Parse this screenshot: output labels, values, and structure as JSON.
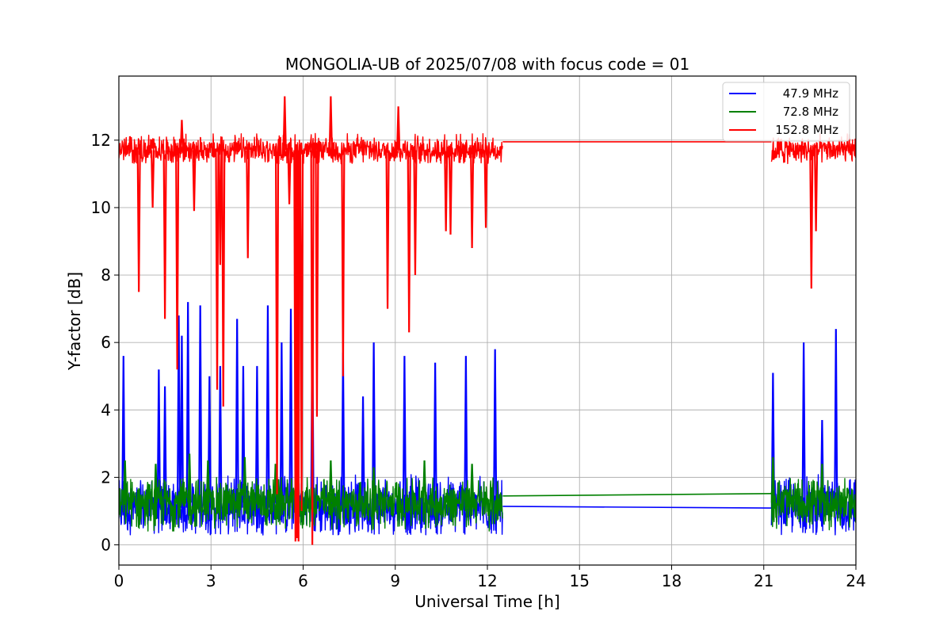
{
  "chart_data": {
    "type": "line",
    "title": "MONGOLIA-UB of 2025/07/08 with focus code = 01",
    "xlabel": "Universal Time [h]",
    "ylabel": "Y-factor [dB]",
    "xlim": [
      0,
      24
    ],
    "ylim": [
      -0.6,
      13.9
    ],
    "xticks": [
      0,
      3,
      6,
      9,
      12,
      15,
      18,
      21,
      24
    ],
    "xtick_labels": [
      "0",
      "3",
      "6",
      "9",
      "12",
      "15",
      "18",
      "21",
      "24"
    ],
    "yticks": [
      0,
      2,
      4,
      6,
      8,
      10,
      12
    ],
    "ytick_labels": [
      "0",
      "2",
      "4",
      "6",
      "8",
      "10",
      "12"
    ],
    "grid": true,
    "legend_position": "top-right",
    "gap": [
      12.5,
      21.25
    ],
    "series": [
      {
        "name": "47.9 MHz",
        "color": "#0000ff",
        "baseline": 1.1,
        "noise_band": [
          0.3,
          2.1
        ],
        "x": [
          0.15,
          1.3,
          1.5,
          1.95,
          2.05,
          2.25,
          2.65,
          2.95,
          3.3,
          3.85,
          4.05,
          4.5,
          4.85,
          5.3,
          5.6,
          6.3,
          7.3,
          7.95,
          8.3,
          9.3,
          10.3,
          11.3,
          12.25,
          21.3,
          22.3,
          22.9,
          23.35
        ],
        "spikes": [
          5.6,
          5.2,
          4.7,
          6.8,
          6.2,
          7.2,
          7.1,
          5.0,
          5.3,
          6.7,
          5.3,
          5.3,
          7.1,
          6.0,
          7.0,
          6.7,
          5.7,
          4.4,
          6.0,
          5.6,
          5.4,
          5.6,
          5.8,
          5.1,
          6.0,
          3.7,
          6.4
        ]
      },
      {
        "name": "72.8 MHz",
        "color": "#008000",
        "baseline": 1.25,
        "noise_band": [
          0.4,
          2.0
        ],
        "gap_line": [
          1.45,
          1.52
        ],
        "x": [
          0.2,
          1.2,
          2.3,
          2.9,
          4.1,
          5.1,
          6.9,
          8.3,
          9.95,
          11.5,
          21.3,
          22.9
        ],
        "spikes": [
          2.5,
          2.4,
          2.7,
          2.5,
          2.6,
          2.4,
          2.5,
          2.3,
          2.5,
          2.4,
          2.6,
          2.4
        ]
      },
      {
        "name": "152.8 MHz",
        "color": "#ff0000",
        "baseline": 11.7,
        "noise_band": [
          11.3,
          12.2
        ],
        "gap_line": [
          11.95,
          11.95
        ],
        "x": [
          0.65,
          1.1,
          1.5,
          1.9,
          2.05,
          2.45,
          3.2,
          3.3,
          3.4,
          4.2,
          5.15,
          5.4,
          5.55,
          5.75,
          5.8,
          5.85,
          5.95,
          6.3,
          6.45,
          6.9,
          7.3,
          8.75,
          9.1,
          9.45,
          9.65,
          10.65,
          10.8,
          11.5,
          11.95,
          22.55,
          22.7
        ],
        "spikes": [
          7.5,
          10.0,
          6.7,
          5.2,
          12.6,
          9.9,
          4.6,
          8.3,
          4.1,
          8.5,
          1.5,
          13.3,
          10.1,
          0.1,
          0.2,
          0.1,
          1.0,
          0.0,
          3.8,
          13.3,
          5.0,
          7.0,
          13.0,
          6.3,
          8.0,
          9.3,
          9.2,
          8.8,
          9.4,
          7.6,
          9.3
        ]
      }
    ]
  }
}
